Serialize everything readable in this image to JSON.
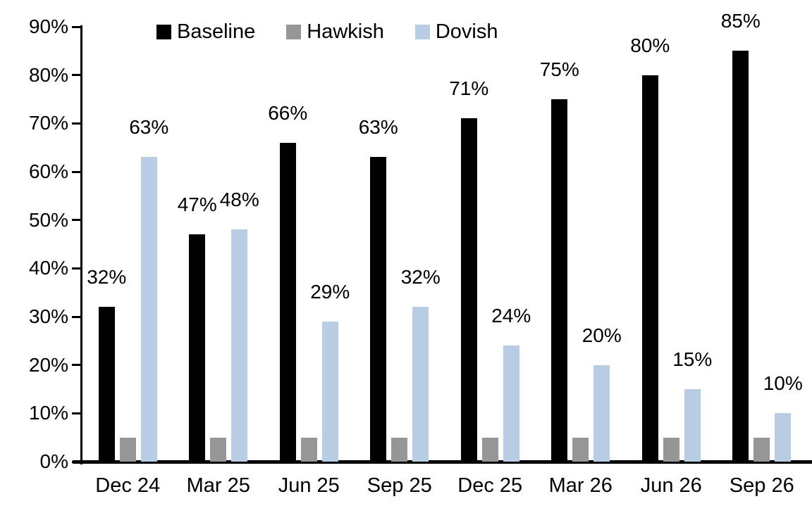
{
  "chart_data": {
    "type": "bar",
    "title": "",
    "xlabel": "",
    "ylabel": "",
    "categories": [
      "Dec 24",
      "Mar 25",
      "Jun 25",
      "Sep 25",
      "Dec 25",
      "Mar 26",
      "Jun 26",
      "Sep 26"
    ],
    "series": [
      {
        "name": "Baseline",
        "color": "#000000",
        "values": [
          32,
          47,
          66,
          63,
          71,
          75,
          80,
          85
        ],
        "data_labels": [
          "32%",
          "47%",
          "66%",
          "63%",
          "71%",
          "75%",
          "80%",
          "85%"
        ],
        "labels_shown": true
      },
      {
        "name": "Hawkish",
        "color": "#969696",
        "values": [
          5,
          5,
          5,
          5,
          5,
          5,
          5,
          5
        ],
        "data_labels": [],
        "labels_shown": false
      },
      {
        "name": "Dovish",
        "color": "#b8cce4",
        "values": [
          63,
          48,
          29,
          32,
          24,
          20,
          15,
          10
        ],
        "data_labels": [
          "63%",
          "48%",
          "29%",
          "32%",
          "24%",
          "20%",
          "15%",
          "10%"
        ],
        "labels_shown": true
      }
    ],
    "ylim": [
      0,
      90
    ],
    "ytick_step": 10,
    "ytick_labels": [
      "0%",
      "10%",
      "20%",
      "30%",
      "40%",
      "50%",
      "60%",
      "70%",
      "80%",
      "90%"
    ],
    "value_suffix": "%",
    "legend_position": "top",
    "legend_entries": [
      "Baseline",
      "Hawkish",
      "Dovish"
    ],
    "grid": false,
    "axis_color": "#000000",
    "background_color": "#ffffff"
  }
}
